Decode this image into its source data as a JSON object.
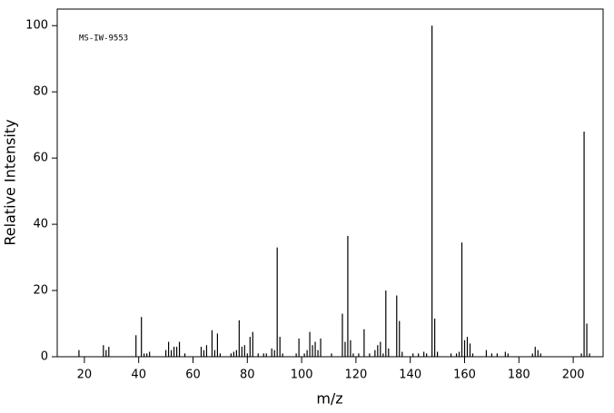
{
  "chart_data": {
    "type": "stem",
    "annotation": "MS-IW-9553",
    "x_label": "m/z",
    "y_label": "Relative Intensity",
    "x": [
      18,
      27,
      28,
      29,
      39,
      41,
      42,
      43,
      44,
      50,
      51,
      52,
      53,
      54,
      55,
      57,
      63,
      64,
      65,
      67,
      68,
      69,
      70,
      74,
      75,
      76,
      77,
      78,
      79,
      80,
      81,
      82,
      84,
      86,
      87,
      89,
      90,
      91,
      92,
      93,
      98,
      99,
      101,
      102,
      103,
      104,
      105,
      106,
      107,
      111,
      115,
      116,
      117,
      118,
      119,
      121,
      123,
      125,
      127,
      128,
      129,
      130,
      131,
      132,
      135,
      136,
      137,
      141,
      143,
      145,
      146,
      148,
      149,
      150,
      155,
      157,
      158,
      159,
      160,
      161,
      162,
      163,
      168,
      170,
      172,
      175,
      176,
      185,
      186,
      187,
      188,
      203,
      204,
      205,
      206
    ],
    "values": [
      2,
      3.5,
      2,
      3,
      6.5,
      12,
      1,
      1,
      1.5,
      2,
      4.5,
      2,
      3,
      3,
      4.5,
      1,
      3,
      2,
      3.5,
      8,
      2,
      7,
      1,
      1,
      1.5,
      2,
      11,
      3,
      3.5,
      1,
      6,
      7.5,
      1,
      1,
      1,
      2.5,
      2,
      33,
      6,
      1,
      1,
      5.5,
      1,
      2,
      7.5,
      3.5,
      4.5,
      2,
      5.5,
      1,
      13,
      4.5,
      36.5,
      5,
      1,
      1,
      8.3,
      1,
      2,
      3.5,
      4.5,
      1,
      20,
      2.5,
      18.5,
      10.8,
      1.5,
      1,
      1,
      1.5,
      1,
      100,
      11.5,
      1.5,
      1,
      1,
      1.5,
      34.5,
      5,
      6,
      4,
      1,
      2,
      1,
      1,
      1.5,
      1,
      1,
      3,
      2,
      1,
      1,
      68,
      10,
      1
    ],
    "color": "#000000",
    "xlim": [
      10,
      211
    ],
    "ylim": [
      0,
      105
    ],
    "xticks": [
      20,
      40,
      60,
      80,
      100,
      120,
      140,
      160,
      180,
      200
    ],
    "yticks": [
      0,
      20,
      40,
      60,
      80,
      100
    ]
  }
}
